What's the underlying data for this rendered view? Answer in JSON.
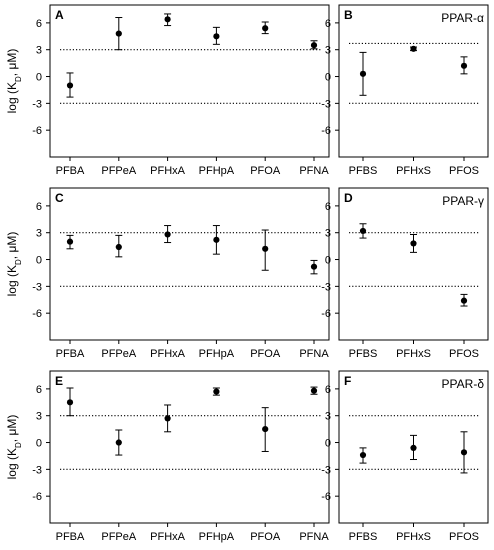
{
  "figure": {
    "ylabel_prefix": "log (K",
    "ylabel_sub": "D",
    "ylabel_suffix": ", μM)"
  },
  "chart_data": [
    {
      "type": "scatter",
      "panel": "A",
      "title": "",
      "ylim": [
        -9,
        8
      ],
      "yticks": [
        -6,
        -3,
        0,
        3,
        6
      ],
      "reference_lines": [
        3,
        -3
      ],
      "categories": [
        "PFBA",
        "PFPeA",
        "PFHxA",
        "PFHpA",
        "PFOA",
        "PFNA"
      ],
      "values": [
        -1.0,
        4.8,
        6.4,
        4.5,
        5.4,
        3.5
      ],
      "err_low": [
        -2.3,
        3.0,
        5.7,
        3.6,
        4.8,
        3.1
      ],
      "err_high": [
        0.4,
        6.6,
        7.0,
        5.5,
        6.1,
        4.0
      ]
    },
    {
      "type": "scatter",
      "panel": "B",
      "title": "PPAR-α",
      "ylim": [
        -9,
        8
      ],
      "yticks": [
        -6,
        -3,
        0,
        3,
        6
      ],
      "reference_lines": [
        3.7,
        -3
      ],
      "categories": [
        "PFBS",
        "PFHxS",
        "PFOS"
      ],
      "values": [
        0.3,
        3.1,
        1.2
      ],
      "err_low": [
        -2.1,
        2.9,
        0.3
      ],
      "err_high": [
        2.7,
        3.3,
        2.2
      ]
    },
    {
      "type": "scatter",
      "panel": "C",
      "title": "",
      "ylim": [
        -9,
        8
      ],
      "yticks": [
        -6,
        -3,
        0,
        3,
        6
      ],
      "reference_lines": [
        3,
        -3
      ],
      "categories": [
        "PFBA",
        "PFPeA",
        "PFHxA",
        "PFHpA",
        "PFOA",
        "PFNA"
      ],
      "values": [
        2.0,
        1.4,
        2.8,
        2.2,
        1.2,
        -0.8
      ],
      "err_low": [
        1.2,
        0.3,
        1.9,
        0.6,
        -1.2,
        -1.6
      ],
      "err_high": [
        2.7,
        2.7,
        3.8,
        3.8,
        3.3,
        -0.1
      ]
    },
    {
      "type": "scatter",
      "panel": "D",
      "title": "PPAR-γ",
      "ylim": [
        -9,
        8
      ],
      "yticks": [
        -6,
        -3,
        0,
        3,
        6
      ],
      "reference_lines": [
        3,
        -3
      ],
      "categories": [
        "PFBS",
        "PFHxS",
        "PFOS"
      ],
      "values": [
        3.2,
        1.8,
        -4.6
      ],
      "err_low": [
        2.4,
        0.8,
        -5.2
      ],
      "err_high": [
        4.0,
        2.8,
        -3.9
      ]
    },
    {
      "type": "scatter",
      "panel": "E",
      "title": "",
      "ylim": [
        -9,
        8
      ],
      "yticks": [
        -6,
        -3,
        0,
        3,
        6
      ],
      "reference_lines": [
        3,
        -3
      ],
      "categories": [
        "PFBA",
        "PFPeA",
        "PFHxA",
        "PFHpA",
        "PFOA",
        "PFNA"
      ],
      "values": [
        4.5,
        0.0,
        2.7,
        5.7,
        1.5,
        5.8
      ],
      "err_low": [
        3.0,
        -1.4,
        1.2,
        5.3,
        -1.0,
        5.4
      ],
      "err_high": [
        6.1,
        1.4,
        4.2,
        6.1,
        3.9,
        6.2
      ]
    },
    {
      "type": "scatter",
      "panel": "F",
      "title": "PPAR-δ",
      "ylim": [
        -9,
        8
      ],
      "yticks": [
        -6,
        -3,
        0,
        3,
        6
      ],
      "reference_lines": [
        3,
        -3
      ],
      "categories": [
        "PFBS",
        "PFHxS",
        "PFOS"
      ],
      "values": [
        -1.4,
        -0.6,
        -1.1
      ],
      "err_low": [
        -2.3,
        -1.9,
        -3.4
      ],
      "err_high": [
        -0.6,
        0.8,
        1.2
      ]
    }
  ]
}
